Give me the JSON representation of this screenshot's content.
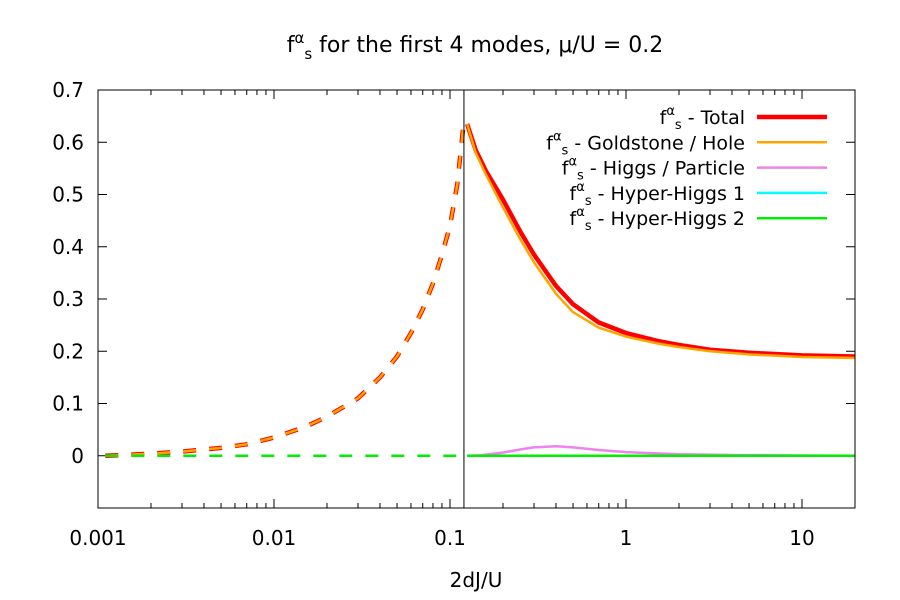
{
  "chart_data": {
    "type": "line",
    "title": {
      "f": "f",
      "sup": "α",
      "sub": "s",
      "rest": " for the first 4 modes, μ/U = 0.2"
    },
    "xlabel": "2dJ/U",
    "ylabel": "",
    "xscale": "log",
    "xlim": [
      0.001,
      20
    ],
    "ylim": [
      -0.1,
      0.7
    ],
    "xticks": [
      {
        "value": 0.001,
        "label": "0.001"
      },
      {
        "value": 0.01,
        "label": "0.01"
      },
      {
        "value": 0.1,
        "label": "0.1"
      },
      {
        "value": 1,
        "label": "1"
      },
      {
        "value": 10,
        "label": "10"
      }
    ],
    "yticks": [
      {
        "value": 0,
        "label": "0"
      },
      {
        "value": 0.1,
        "label": "0.1"
      },
      {
        "value": 0.2,
        "label": "0.2"
      },
      {
        "value": 0.3,
        "label": "0.3"
      },
      {
        "value": 0.4,
        "label": "0.4"
      },
      {
        "value": 0.5,
        "label": "0.5"
      },
      {
        "value": 0.6,
        "label": "0.6"
      },
      {
        "value": 0.7,
        "label": "0.7"
      }
    ],
    "vline": {
      "x": 0.12,
      "color": "#000000"
    },
    "legend_position": "top-right",
    "series": [
      {
        "name": "Total",
        "legend_rest": " - Total",
        "color": "#ff0000",
        "width": 4.5,
        "draw_order": 2,
        "segments": [
          {
            "style": "dashed",
            "points": [
              [
                0.0011,
                0.0
              ],
              [
                0.002,
                0.004
              ],
              [
                0.003,
                0.008
              ],
              [
                0.005,
                0.015
              ],
              [
                0.007,
                0.022
              ],
              [
                0.01,
                0.035
              ],
              [
                0.015,
                0.055
              ],
              [
                0.02,
                0.075
              ],
              [
                0.03,
                0.11
              ],
              [
                0.04,
                0.15
              ],
              [
                0.05,
                0.19
              ],
              [
                0.06,
                0.235
              ],
              [
                0.07,
                0.28
              ],
              [
                0.08,
                0.33
              ],
              [
                0.09,
                0.385
              ],
              [
                0.1,
                0.44
              ],
              [
                0.11,
                0.52
              ],
              [
                0.119,
                0.63
              ]
            ]
          },
          {
            "style": "solid",
            "points": [
              [
                0.125,
                0.635
              ],
              [
                0.14,
                0.585
              ],
              [
                0.16,
                0.545
              ],
              [
                0.2,
                0.49
              ],
              [
                0.25,
                0.43
              ],
              [
                0.3,
                0.385
              ],
              [
                0.4,
                0.325
              ],
              [
                0.5,
                0.29
              ],
              [
                0.7,
                0.255
              ],
              [
                1,
                0.235
              ],
              [
                1.5,
                0.22
              ],
              [
                2,
                0.212
              ],
              [
                3,
                0.203
              ],
              [
                5,
                0.197
              ],
              [
                10,
                0.192
              ],
              [
                20,
                0.19
              ]
            ]
          }
        ]
      },
      {
        "name": "Goldstone / Hole",
        "legend_rest": " - Goldstone / Hole",
        "color": "#ffa500",
        "width": 2.5,
        "draw_order": 3,
        "segments": [
          {
            "style": "dashed",
            "points": [
              [
                0.0011,
                0.0
              ],
              [
                0.002,
                0.004
              ],
              [
                0.003,
                0.008
              ],
              [
                0.005,
                0.015
              ],
              [
                0.007,
                0.022
              ],
              [
                0.01,
                0.035
              ],
              [
                0.015,
                0.055
              ],
              [
                0.02,
                0.075
              ],
              [
                0.03,
                0.11
              ],
              [
                0.04,
                0.15
              ],
              [
                0.05,
                0.19
              ],
              [
                0.06,
                0.235
              ],
              [
                0.07,
                0.28
              ],
              [
                0.08,
                0.33
              ],
              [
                0.09,
                0.385
              ],
              [
                0.1,
                0.44
              ],
              [
                0.11,
                0.52
              ],
              [
                0.119,
                0.63
              ]
            ]
          },
          {
            "style": "solid",
            "points": [
              [
                0.125,
                0.635
              ],
              [
                0.14,
                0.58
              ],
              [
                0.16,
                0.538
              ],
              [
                0.2,
                0.475
              ],
              [
                0.25,
                0.415
              ],
              [
                0.3,
                0.37
              ],
              [
                0.4,
                0.31
              ],
              [
                0.5,
                0.275
              ],
              [
                0.7,
                0.245
              ],
              [
                1,
                0.228
              ],
              [
                1.5,
                0.215
              ],
              [
                2,
                0.208
              ],
              [
                3,
                0.2
              ],
              [
                5,
                0.194
              ],
              [
                10,
                0.189
              ],
              [
                20,
                0.187
              ]
            ]
          }
        ]
      },
      {
        "name": "Higgs / Particle",
        "legend_rest": " - Higgs / Particle",
        "color": "#ee82ee",
        "width": 2.5,
        "draw_order": 1,
        "segments": [
          {
            "style": "solid",
            "points": [
              [
                0.125,
                0.0
              ],
              [
                0.15,
                0.001
              ],
              [
                0.2,
                0.006
              ],
              [
                0.25,
                0.012
              ],
              [
                0.3,
                0.016
              ],
              [
                0.4,
                0.018
              ],
              [
                0.5,
                0.016
              ],
              [
                0.7,
                0.011
              ],
              [
                1,
                0.007
              ],
              [
                2,
                0.003
              ],
              [
                5,
                0.001
              ],
              [
                20,
                0.0
              ]
            ]
          }
        ]
      },
      {
        "name": "Hyper-Higgs 1",
        "legend_rest": " - Hyper-Higgs 1",
        "color": "#00ffff",
        "width": 2.5,
        "draw_order": 4,
        "segments": [
          {
            "style": "solid",
            "points": [
              [
                0.125,
                0.0
              ],
              [
                20,
                0.0
              ]
            ]
          }
        ]
      },
      {
        "name": "Hyper-Higgs 2",
        "legend_rest": " - Hyper-Higgs 2",
        "color": "#00ee00",
        "width": 2.5,
        "draw_order": 5,
        "segments": [
          {
            "style": "dashed",
            "points": [
              [
                0.0011,
                0.0
              ],
              [
                0.119,
                0.0
              ]
            ]
          },
          {
            "style": "solid",
            "points": [
              [
                0.125,
                0.0
              ],
              [
                20,
                0.0
              ]
            ]
          }
        ]
      }
    ],
    "legend_symbol": {
      "f": "f",
      "sup": "α",
      "sub": "s"
    }
  }
}
